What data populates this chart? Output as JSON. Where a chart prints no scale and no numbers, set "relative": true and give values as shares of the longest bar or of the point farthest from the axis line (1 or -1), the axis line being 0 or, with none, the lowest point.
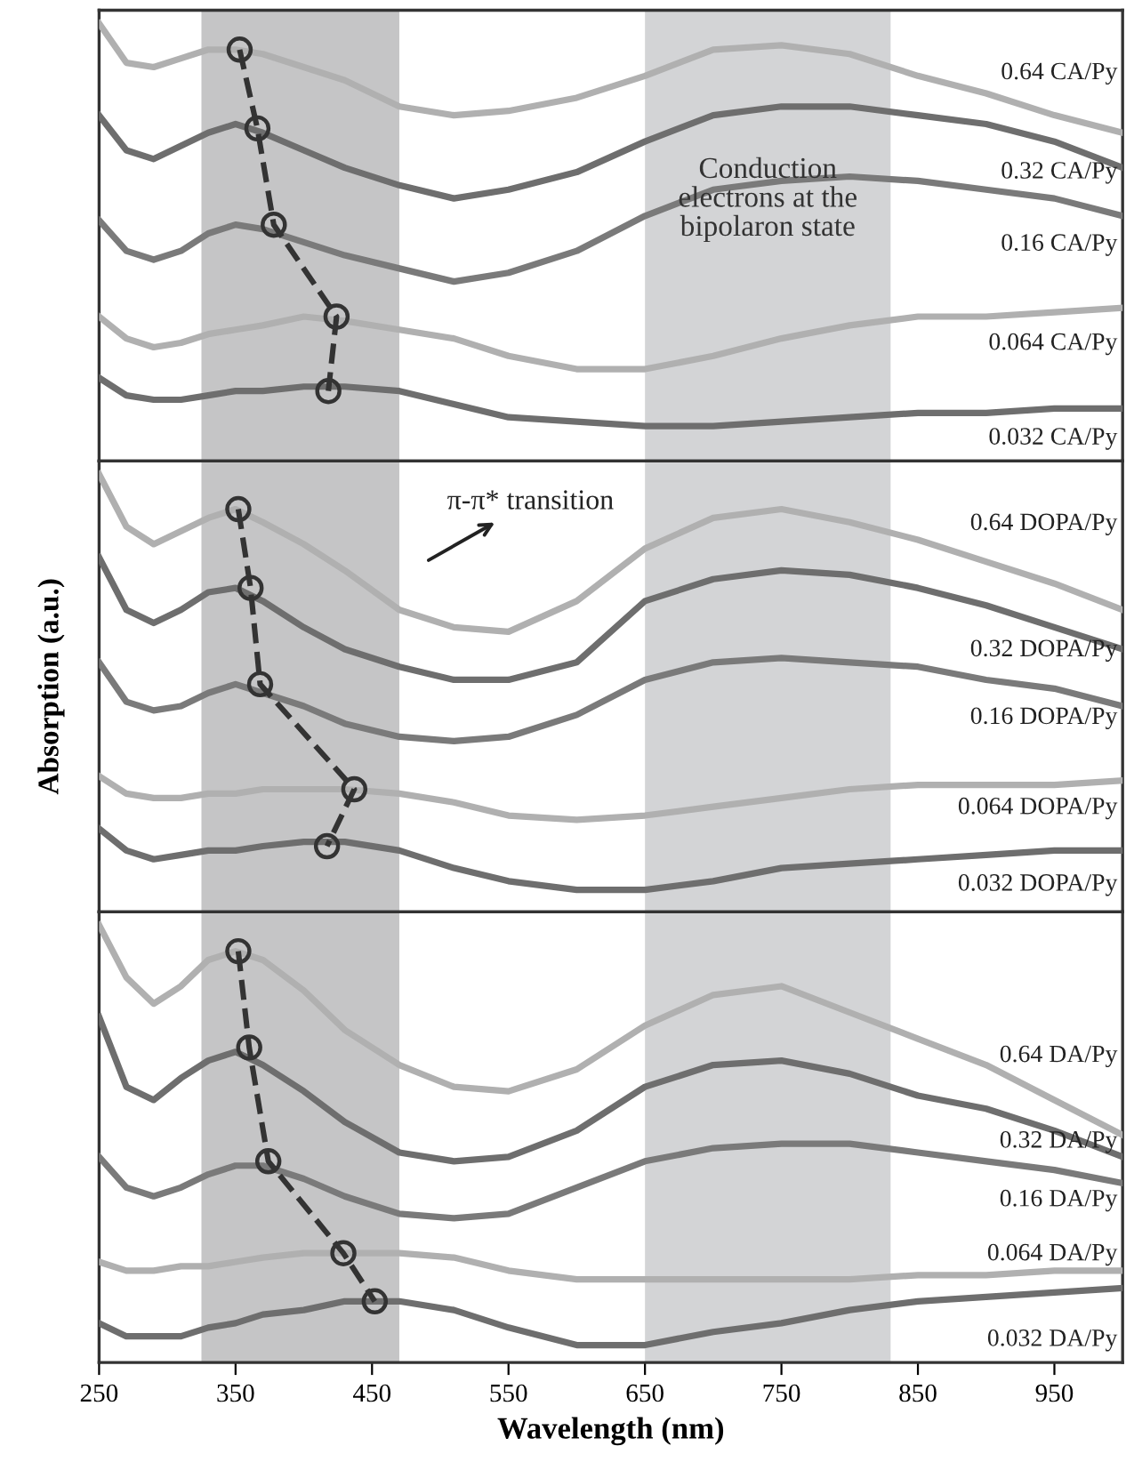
{
  "chart_data": [
    {
      "type": "line",
      "relative": true,
      "tick_labels": false,
      "xlim": [
        250,
        1000
      ],
      "xticks": [
        250,
        350,
        450,
        550,
        650,
        750,
        850,
        950
      ],
      "bands": [
        {
          "axis": "x",
          "from": 325,
          "to": 470,
          "color": "#c5c5c6"
        },
        {
          "axis": "x",
          "from": 650,
          "to": 830,
          "color": "#d3d4d6"
        }
      ],
      "annotations": [
        "Conduction\nelectrons at the\nbipolaron state"
      ],
      "x": [
        250,
        270,
        290,
        310,
        330,
        350,
        370,
        400,
        430,
        470,
        510,
        550,
        600,
        650,
        700,
        750,
        800,
        850,
        900,
        950,
        1000
      ],
      "series": [
        {
          "name": "0.64 CA/Py",
          "color": "#b0b0b0",
          "values": [
            1.0,
            0.91,
            0.9,
            0.92,
            0.94,
            0.94,
            0.93,
            0.9,
            0.87,
            0.81,
            0.79,
            0.8,
            0.83,
            0.88,
            0.94,
            0.95,
            0.93,
            0.88,
            0.84,
            0.79,
            0.75
          ]
        },
        {
          "name": "0.32 CA/Py",
          "color": "#6e6e6e",
          "values": [
            0.79,
            0.71,
            0.69,
            0.72,
            0.75,
            0.77,
            0.75,
            0.71,
            0.67,
            0.63,
            0.6,
            0.62,
            0.66,
            0.73,
            0.79,
            0.81,
            0.81,
            0.79,
            0.77,
            0.73,
            0.67
          ]
        },
        {
          "name": "0.16 CA/Py",
          "color": "#7a7a7a",
          "values": [
            0.55,
            0.48,
            0.46,
            0.48,
            0.52,
            0.54,
            0.53,
            0.5,
            0.47,
            0.44,
            0.41,
            0.43,
            0.48,
            0.56,
            0.62,
            0.64,
            0.65,
            0.64,
            0.62,
            0.6,
            0.56
          ]
        },
        {
          "name": "0.064 CA/Py",
          "color": "#b0b0b0",
          "values": [
            0.33,
            0.28,
            0.26,
            0.27,
            0.29,
            0.3,
            0.31,
            0.33,
            0.32,
            0.3,
            0.28,
            0.24,
            0.21,
            0.21,
            0.24,
            0.28,
            0.31,
            0.33,
            0.33,
            0.34,
            0.35
          ]
        },
        {
          "name": "0.032 CA/Py",
          "color": "#6e6e6e",
          "values": [
            0.19,
            0.15,
            0.14,
            0.14,
            0.15,
            0.16,
            0.16,
            0.17,
            0.17,
            0.16,
            0.13,
            0.1,
            0.09,
            0.08,
            0.08,
            0.09,
            0.1,
            0.11,
            0.11,
            0.12,
            0.12
          ]
        },
        {
          "type": "line",
          "color": "#333333",
          "marker": "circle",
          "line_style": "dashed",
          "x": [
            353,
            366,
            378,
            424,
            418
          ],
          "values": [
            0.94,
            0.76,
            0.54,
            0.33,
            0.16
          ]
        }
      ]
    },
    {
      "type": "line",
      "relative": true,
      "tick_labels": false,
      "xlim": [
        250,
        1000
      ],
      "xticks": [
        250,
        350,
        450,
        550,
        650,
        750,
        850,
        950
      ],
      "ylabel": "Absorption (a.u.)",
      "bands": [
        {
          "axis": "x",
          "from": 325,
          "to": 470,
          "color": "#c5c5c6"
        },
        {
          "axis": "x",
          "from": 650,
          "to": 830,
          "color": "#d3d4d6"
        }
      ],
      "annotations": [
        "π-π* transition"
      ],
      "x": [
        250,
        270,
        290,
        310,
        330,
        350,
        370,
        400,
        430,
        470,
        510,
        550,
        600,
        650,
        700,
        750,
        800,
        850,
        900,
        950,
        1000
      ],
      "series": [
        {
          "name": "0.64 DOPA/Py",
          "color": "#b0b0b0",
          "values": [
            1.0,
            0.88,
            0.84,
            0.87,
            0.9,
            0.92,
            0.89,
            0.84,
            0.78,
            0.69,
            0.65,
            0.64,
            0.71,
            0.83,
            0.9,
            0.92,
            0.89,
            0.85,
            0.8,
            0.75,
            0.69
          ]
        },
        {
          "name": "0.32 DOPA/Py",
          "color": "#6e6e6e",
          "values": [
            0.81,
            0.69,
            0.66,
            0.69,
            0.73,
            0.74,
            0.71,
            0.65,
            0.6,
            0.56,
            0.53,
            0.53,
            0.57,
            0.71,
            0.76,
            0.78,
            0.77,
            0.74,
            0.7,
            0.65,
            0.6
          ]
        },
        {
          "name": "0.16 DOPA/Py",
          "color": "#7a7a7a",
          "values": [
            0.57,
            0.48,
            0.46,
            0.47,
            0.5,
            0.52,
            0.5,
            0.47,
            0.43,
            0.4,
            0.39,
            0.4,
            0.45,
            0.53,
            0.57,
            0.58,
            0.57,
            0.56,
            0.53,
            0.51,
            0.47
          ]
        },
        {
          "name": "0.064 DOPA/Py",
          "color": "#b0b0b0",
          "values": [
            0.31,
            0.27,
            0.26,
            0.26,
            0.27,
            0.27,
            0.28,
            0.28,
            0.28,
            0.27,
            0.25,
            0.22,
            0.21,
            0.22,
            0.24,
            0.26,
            0.28,
            0.29,
            0.29,
            0.29,
            0.3
          ]
        },
        {
          "name": "0.032 DOPA/Py",
          "color": "#6e6e6e",
          "values": [
            0.19,
            0.14,
            0.12,
            0.13,
            0.14,
            0.14,
            0.15,
            0.16,
            0.16,
            0.14,
            0.1,
            0.07,
            0.05,
            0.05,
            0.07,
            0.1,
            0.11,
            0.12,
            0.13,
            0.14,
            0.14
          ]
        },
        {
          "type": "line",
          "color": "#333333",
          "marker": "circle",
          "line_style": "dashed",
          "x": [
            352,
            361,
            368,
            437,
            417
          ],
          "values": [
            0.92,
            0.74,
            0.52,
            0.28,
            0.15
          ]
        }
      ]
    },
    {
      "type": "line",
      "relative": true,
      "tick_labels": "x",
      "xlim": [
        250,
        1000
      ],
      "xticks": [
        250,
        350,
        450,
        550,
        650,
        750,
        850,
        950
      ],
      "xlabel": "Wavelength (nm)",
      "bands": [
        {
          "axis": "x",
          "from": 325,
          "to": 470,
          "color": "#c5c5c6"
        },
        {
          "axis": "x",
          "from": 650,
          "to": 830,
          "color": "#d3d4d6"
        }
      ],
      "x": [
        250,
        270,
        290,
        310,
        330,
        350,
        370,
        400,
        430,
        470,
        510,
        550,
        600,
        650,
        700,
        750,
        800,
        850,
        900,
        950,
        1000
      ],
      "series": [
        {
          "name": "0.64 DA/Py",
          "color": "#b0b0b0",
          "values": [
            1.0,
            0.88,
            0.82,
            0.86,
            0.92,
            0.94,
            0.92,
            0.85,
            0.76,
            0.68,
            0.63,
            0.62,
            0.67,
            0.77,
            0.84,
            0.86,
            0.8,
            0.74,
            0.68,
            0.6,
            0.52
          ]
        },
        {
          "name": "0.32 DA/Py",
          "color": "#6e6e6e",
          "values": [
            0.79,
            0.63,
            0.6,
            0.65,
            0.69,
            0.71,
            0.68,
            0.62,
            0.55,
            0.48,
            0.46,
            0.47,
            0.53,
            0.63,
            0.68,
            0.69,
            0.66,
            0.61,
            0.58,
            0.53,
            0.47
          ]
        },
        {
          "name": "0.16 DA/Py",
          "color": "#7a7a7a",
          "values": [
            0.47,
            0.4,
            0.38,
            0.4,
            0.43,
            0.45,
            0.45,
            0.42,
            0.38,
            0.34,
            0.33,
            0.34,
            0.4,
            0.46,
            0.49,
            0.5,
            0.5,
            0.48,
            0.46,
            0.44,
            0.41
          ]
        },
        {
          "name": "0.064 DA/Py",
          "color": "#b0b0b0",
          "values": [
            0.23,
            0.21,
            0.21,
            0.22,
            0.22,
            0.23,
            0.24,
            0.25,
            0.25,
            0.25,
            0.24,
            0.21,
            0.19,
            0.19,
            0.19,
            0.19,
            0.19,
            0.2,
            0.2,
            0.21,
            0.21
          ]
        },
        {
          "name": "0.032 DA/Py",
          "color": "#6e6e6e",
          "values": [
            0.09,
            0.06,
            0.06,
            0.06,
            0.08,
            0.09,
            0.11,
            0.12,
            0.14,
            0.14,
            0.12,
            0.08,
            0.04,
            0.04,
            0.07,
            0.09,
            0.12,
            0.14,
            0.15,
            0.16,
            0.17
          ]
        },
        {
          "type": "line",
          "color": "#333333",
          "marker": "circle",
          "line_style": "dashed",
          "x": [
            352,
            360,
            374,
            429,
            452
          ],
          "values": [
            0.94,
            0.72,
            0.46,
            0.25,
            0.14
          ]
        }
      ]
    }
  ]
}
